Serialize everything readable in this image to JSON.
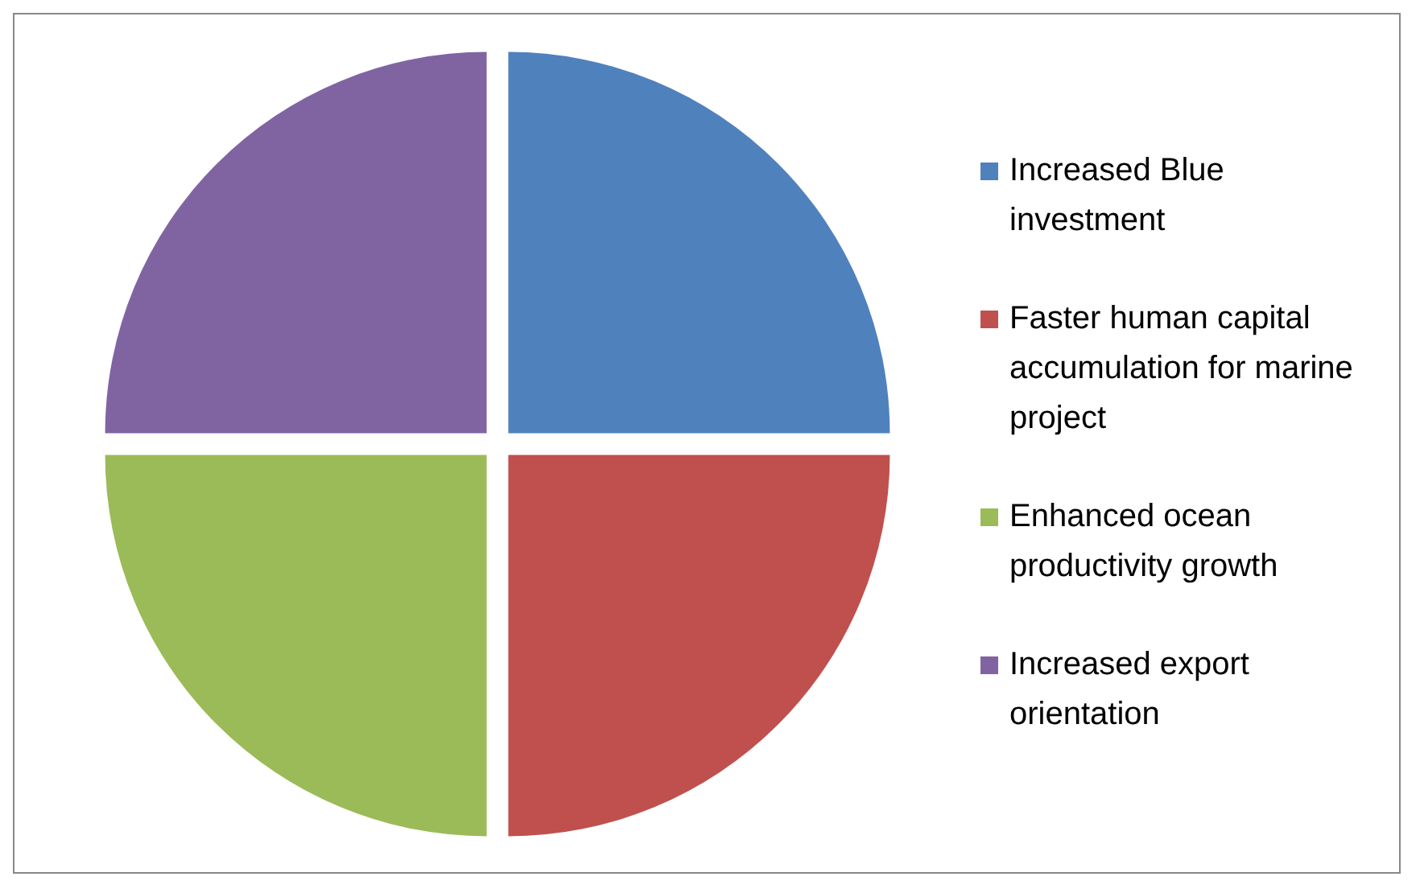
{
  "chart_data": {
    "type": "pie",
    "categories": [
      "Increased Blue investment",
      "Faster human capital accumulation for marine project",
      "Enhanced ocean productivity growth",
      "Increased export orientation"
    ],
    "values": [
      25,
      25,
      25,
      25
    ],
    "colors": [
      "#4f81bd",
      "#c0504d",
      "#9bbb59",
      "#8064a2"
    ],
    "legend": "right"
  }
}
